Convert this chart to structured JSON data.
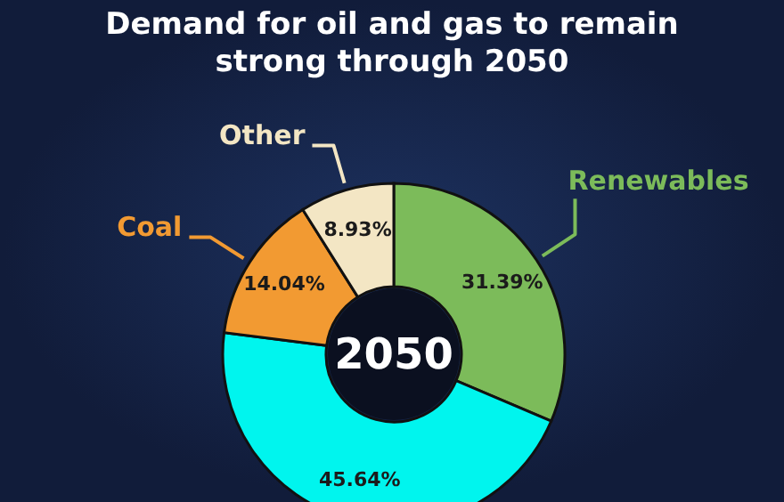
{
  "chart_data": {
    "type": "donut",
    "title": "Demand for oil and gas to remain strong through 2050",
    "categories": [
      "Renewables",
      null,
      "Coal",
      "Other"
    ],
    "values": [
      31.39,
      45.64,
      14.04,
      8.93
    ],
    "colors": [
      "#7cbb5a",
      "#00f5ee",
      "#f29a32",
      "#f3e6c4"
    ],
    "value_labels": [
      "31.39%",
      "45.64%",
      "14.04%",
      "8.93%"
    ],
    "annotations": [
      "2050"
    ],
    "legend": false
  }
}
